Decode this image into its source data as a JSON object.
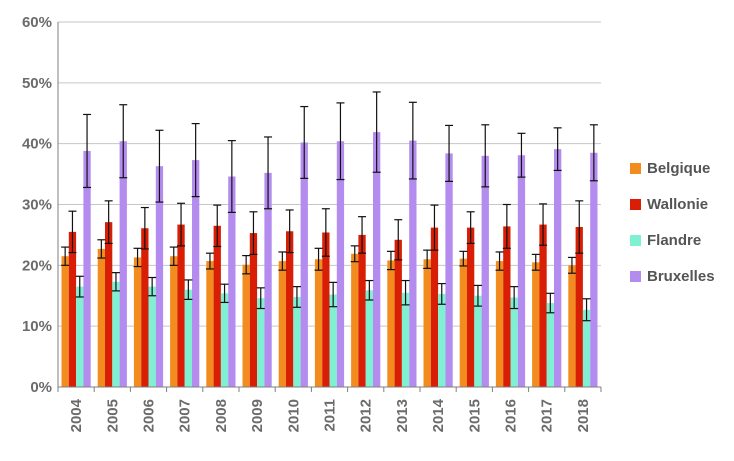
{
  "chart_data": {
    "type": "bar",
    "title": "",
    "xlabel": "",
    "ylabel": "",
    "ylim": [
      0,
      60
    ],
    "y_ticks": [
      "0%",
      "10%",
      "20%",
      "30%",
      "40%",
      "50%",
      "60%"
    ],
    "grid": true,
    "legend_position": "right",
    "categories": [
      "2004",
      "2005",
      "2006",
      "2007",
      "2008",
      "2009",
      "2010",
      "2011",
      "2012",
      "2013",
      "2014",
      "2015",
      "2016",
      "2017",
      "2018"
    ],
    "series": [
      {
        "name": "Belgique",
        "color": "#f28c1e",
        "values": [
          21.5,
          22.7,
          21.3,
          21.5,
          20.7,
          20.1,
          20.7,
          21.0,
          21.9,
          20.8,
          21.0,
          21.1,
          20.7,
          20.5,
          20.0
        ],
        "error": [
          1.5,
          1.5,
          1.5,
          1.5,
          1.3,
          1.5,
          1.5,
          1.8,
          1.3,
          1.5,
          1.5,
          1.2,
          1.5,
          1.3,
          1.3
        ]
      },
      {
        "name": "Wallonie",
        "color": "#d81e05",
        "values": [
          25.5,
          27.1,
          26.1,
          26.7,
          26.5,
          25.3,
          25.6,
          25.4,
          25.0,
          24.2,
          26.2,
          26.2,
          26.4,
          26.7,
          26.3
        ],
        "error": [
          3.4,
          3.5,
          3.4,
          3.5,
          3.4,
          3.5,
          3.5,
          3.9,
          3.0,
          3.3,
          3.7,
          2.6,
          3.6,
          3.4,
          4.3
        ]
      },
      {
        "name": "Flandre",
        "color": "#7ff0d2",
        "values": [
          16.5,
          17.3,
          16.5,
          16.0,
          15.4,
          14.6,
          14.8,
          15.2,
          15.9,
          15.5,
          15.3,
          15.0,
          14.7,
          13.8,
          12.7
        ],
        "error": [
          1.7,
          1.5,
          1.5,
          1.6,
          1.5,
          1.7,
          1.7,
          2.0,
          1.6,
          2.0,
          1.7,
          1.7,
          1.8,
          1.6,
          1.8
        ]
      },
      {
        "name": "Bruxelles",
        "color": "#b48cf0",
        "values": [
          38.8,
          40.4,
          36.3,
          37.3,
          34.6,
          35.2,
          40.2,
          40.4,
          41.9,
          40.5,
          38.4,
          38.0,
          38.1,
          39.1,
          38.5
        ],
        "error": [
          6.0,
          6.0,
          5.9,
          6.0,
          5.9,
          5.9,
          5.9,
          6.3,
          6.6,
          6.3,
          4.6,
          5.1,
          3.6,
          3.5,
          4.6
        ]
      }
    ]
  }
}
